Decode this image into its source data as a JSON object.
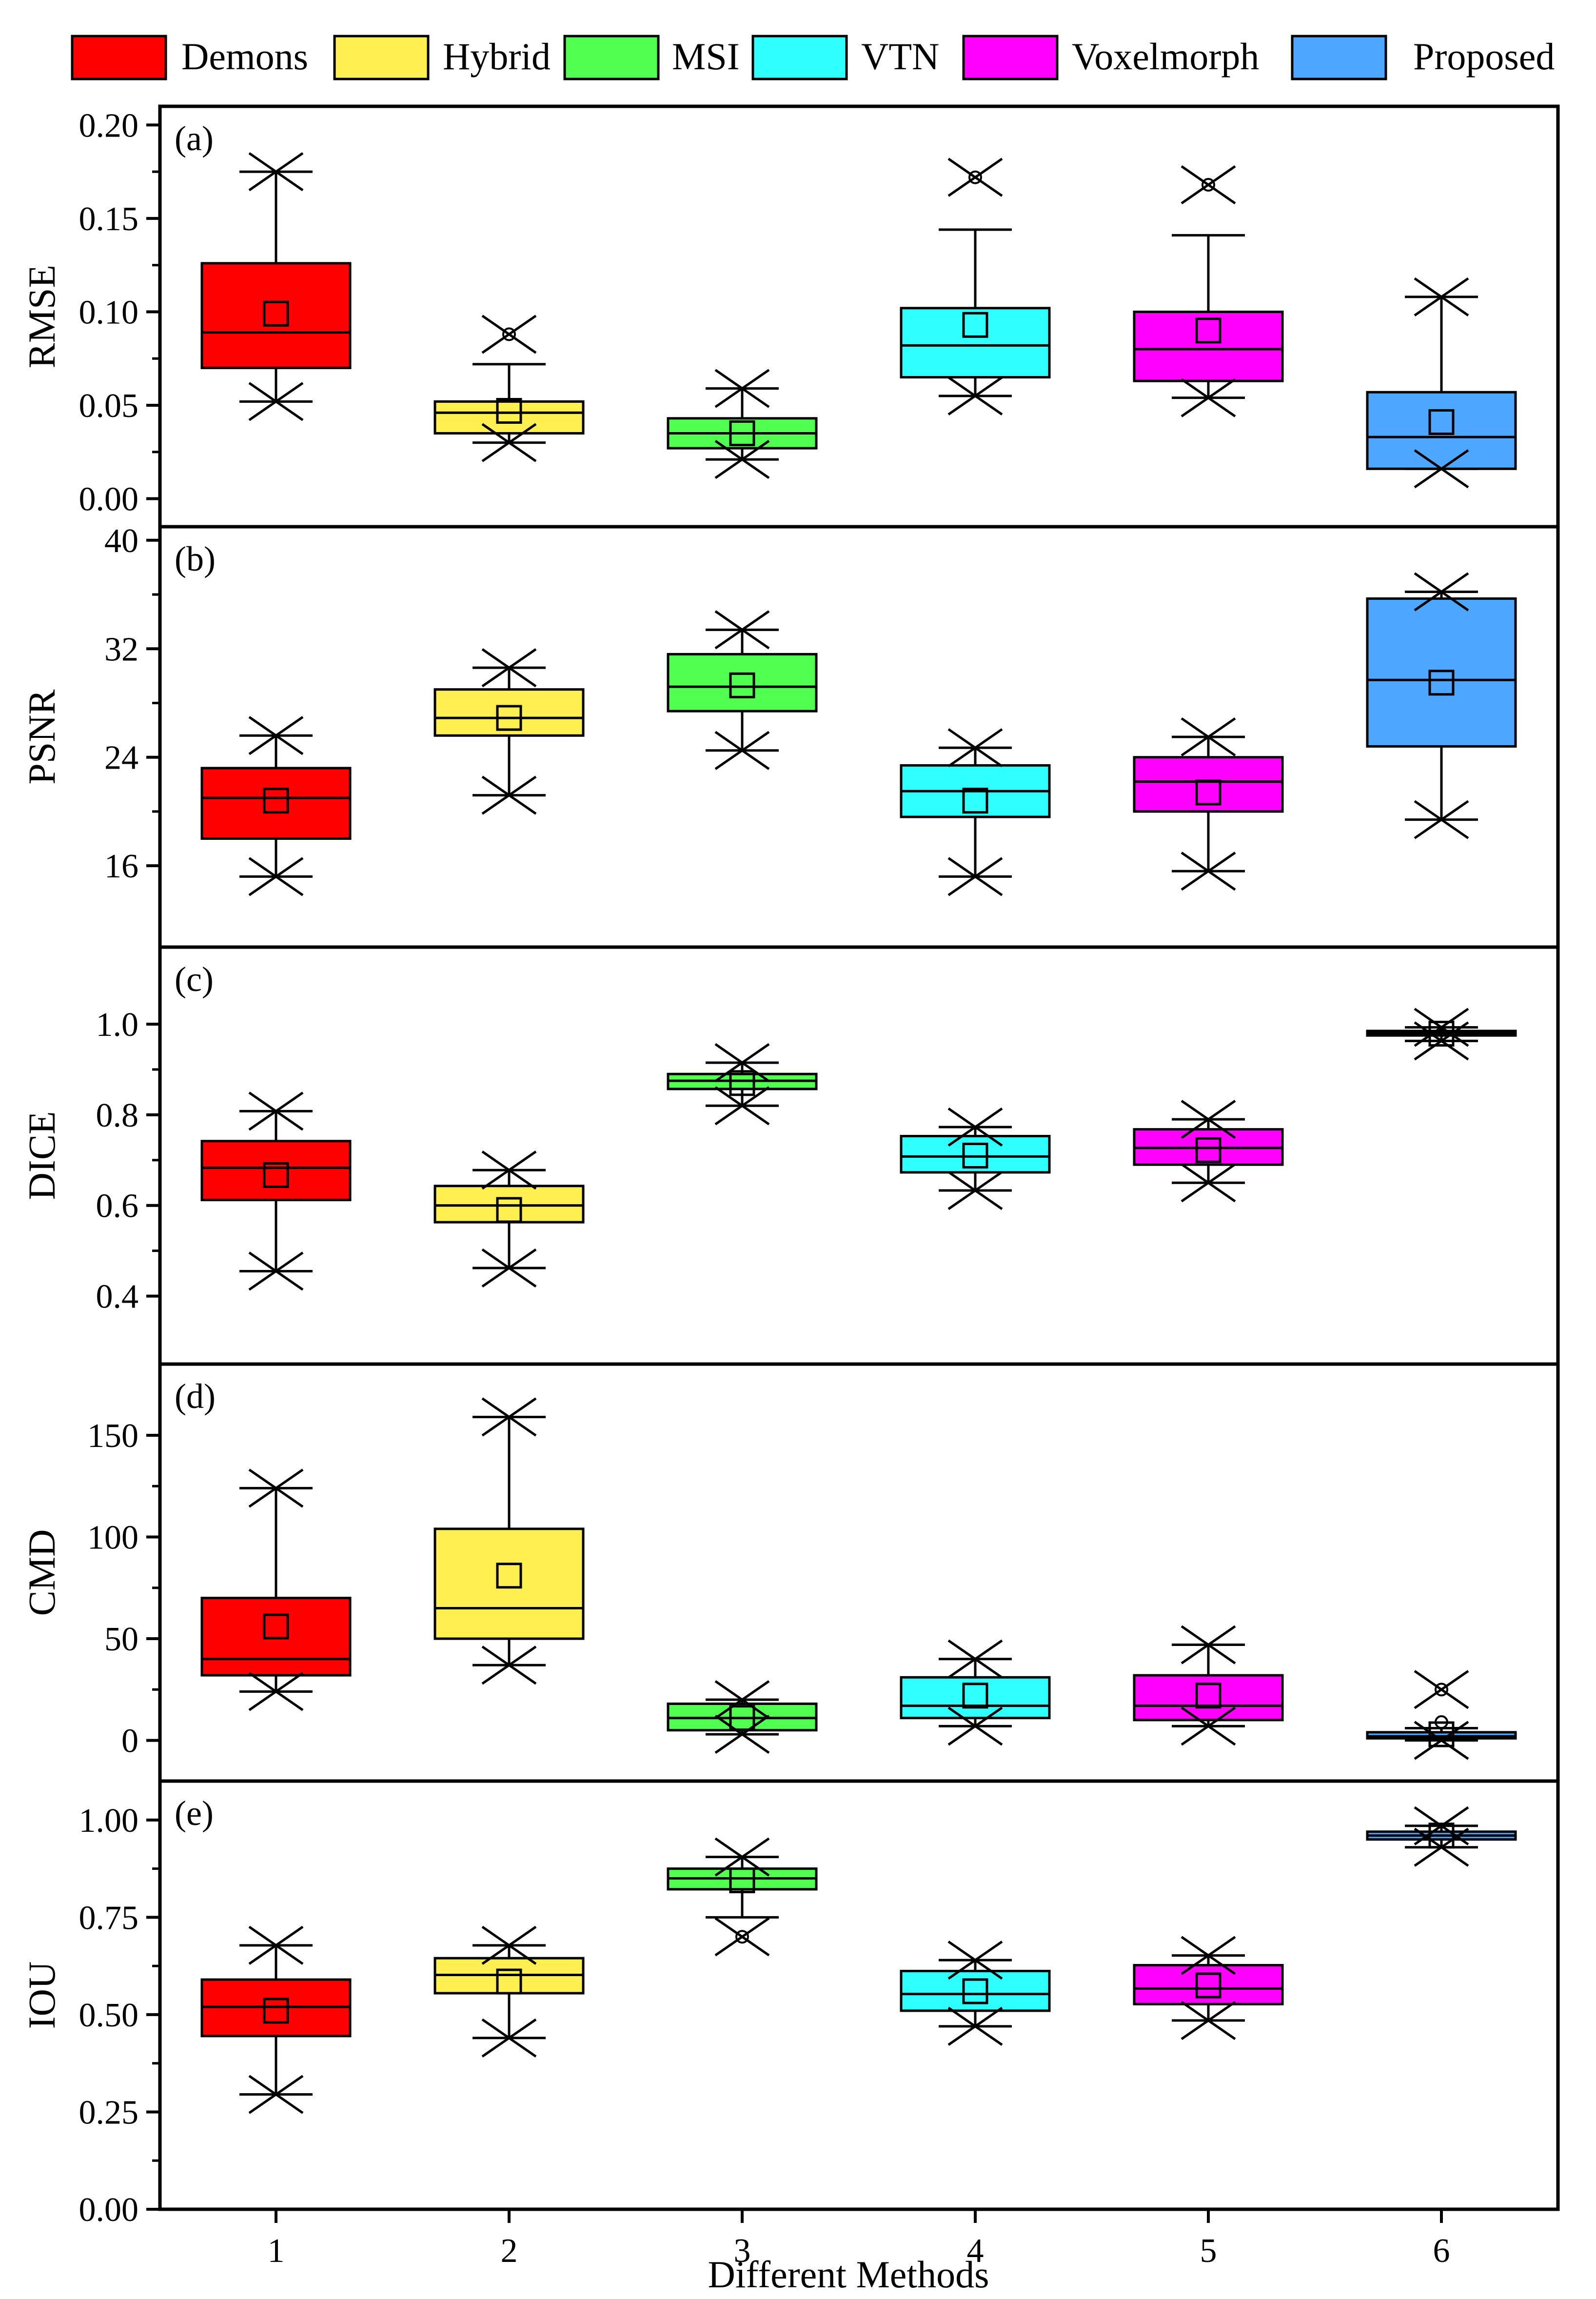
{
  "chart_data": {
    "type": "box",
    "xlabel": "Different Methods",
    "categories": [
      "1",
      "2",
      "3",
      "4",
      "5",
      "6"
    ],
    "legend": {
      "placement": "top",
      "entries": [
        {
          "name": "Demons",
          "color": "#ff0000"
        },
        {
          "name": "Hybrid",
          "color": "#ffef50"
        },
        {
          "name": "MSI",
          "color": "#50ff50"
        },
        {
          "name": "VTN",
          "color": "#30ffff"
        },
        {
          "name": "Voxelmorph",
          "color": "#ff00ff"
        },
        {
          "name": "Proposed",
          "color": "#4da6ff"
        }
      ]
    },
    "panels": [
      {
        "label": "(a)",
        "ylabel": "RMSE",
        "ylim": [
          -0.015,
          0.21
        ],
        "yticks": [
          "0.00",
          "0.05",
          "0.10",
          "0.15",
          "0.20"
        ],
        "ytick_values": [
          0,
          0.05,
          0.1,
          0.15,
          0.2
        ],
        "boxes": [
          {
            "q1": 0.07,
            "median": 0.089,
            "q3": 0.126,
            "whisker_low": 0.052,
            "whisker_high": 0.175,
            "mean": 0.099,
            "min": 0.052,
            "max": 0.175,
            "outliers": []
          },
          {
            "q1": 0.035,
            "median": 0.046,
            "q3": 0.052,
            "whisker_low": 0.03,
            "whisker_high": 0.072,
            "mean": 0.047,
            "min": 0.03,
            "max": 0.088,
            "outliers": [
              0.088
            ]
          },
          {
            "q1": 0.027,
            "median": 0.035,
            "q3": 0.043,
            "whisker_low": 0.021,
            "whisker_high": 0.059,
            "mean": 0.035,
            "min": 0.021,
            "max": 0.059,
            "outliers": []
          },
          {
            "q1": 0.065,
            "median": 0.082,
            "q3": 0.102,
            "whisker_low": 0.055,
            "whisker_high": 0.144,
            "mean": 0.093,
            "min": 0.055,
            "max": 0.172,
            "outliers": [
              0.172
            ]
          },
          {
            "q1": 0.063,
            "median": 0.08,
            "q3": 0.1,
            "whisker_low": 0.054,
            "whisker_high": 0.141,
            "mean": 0.09,
            "min": 0.054,
            "max": 0.168,
            "outliers": [
              0.168
            ]
          },
          {
            "q1": 0.016,
            "median": 0.033,
            "q3": 0.057,
            "whisker_low": 0.016,
            "whisker_high": 0.108,
            "mean": 0.041,
            "min": 0.016,
            "max": 0.108,
            "outliers": []
          }
        ]
      },
      {
        "label": "(b)",
        "ylabel": "PSNR",
        "ylim": [
          10,
          41
        ],
        "yticks": [
          "16",
          "24",
          "32",
          "40"
        ],
        "ytick_values": [
          16,
          24,
          32,
          40
        ],
        "boxes": [
          {
            "q1": 18.0,
            "median": 21.0,
            "q3": 23.2,
            "whisker_low": 15.2,
            "whisker_high": 25.6,
            "mean": 20.8,
            "min": 15.2,
            "max": 25.6,
            "outliers": []
          },
          {
            "q1": 25.6,
            "median": 26.9,
            "q3": 29.0,
            "whisker_low": 21.2,
            "whisker_high": 30.6,
            "mean": 26.9,
            "min": 21.2,
            "max": 30.6,
            "outliers": []
          },
          {
            "q1": 27.4,
            "median": 29.2,
            "q3": 31.6,
            "whisker_low": 24.5,
            "whisker_high": 33.4,
            "mean": 29.3,
            "min": 24.5,
            "max": 33.4,
            "outliers": []
          },
          {
            "q1": 19.6,
            "median": 21.5,
            "q3": 23.4,
            "whisker_low": 15.2,
            "whisker_high": 24.7,
            "mean": 20.8,
            "min": 15.2,
            "max": 24.7,
            "outliers": []
          },
          {
            "q1": 20.0,
            "median": 22.2,
            "q3": 24.0,
            "whisker_low": 15.6,
            "whisker_high": 25.5,
            "mean": 21.4,
            "min": 15.6,
            "max": 25.5,
            "outliers": []
          },
          {
            "q1": 24.8,
            "median": 29.7,
            "q3": 35.7,
            "whisker_low": 19.4,
            "whisker_high": 36.2,
            "mean": 29.5,
            "min": 19.4,
            "max": 36.2,
            "outliers": []
          }
        ]
      },
      {
        "label": "(c)",
        "ylabel": "DICE",
        "ylim": [
          0.25,
          1.17
        ],
        "yticks": [
          "0.4",
          "0.6",
          "0.8",
          "1.0"
        ],
        "ytick_values": [
          0.4,
          0.6,
          0.8,
          1.0
        ],
        "boxes": [
          {
            "q1": 0.612,
            "median": 0.683,
            "q3": 0.742,
            "whisker_low": 0.455,
            "whisker_high": 0.808,
            "mean": 0.667,
            "min": 0.455,
            "max": 0.808,
            "outliers": []
          },
          {
            "q1": 0.563,
            "median": 0.6,
            "q3": 0.643,
            "whisker_low": 0.462,
            "whisker_high": 0.678,
            "mean": 0.59,
            "min": 0.462,
            "max": 0.678,
            "outliers": []
          },
          {
            "q1": 0.857,
            "median": 0.875,
            "q3": 0.89,
            "whisker_low": 0.82,
            "whisker_high": 0.915,
            "mean": 0.87,
            "min": 0.82,
            "max": 0.915,
            "outliers": []
          },
          {
            "q1": 0.673,
            "median": 0.708,
            "q3": 0.753,
            "whisker_low": 0.633,
            "whisker_high": 0.773,
            "mean": 0.71,
            "min": 0.633,
            "max": 0.773,
            "outliers": []
          },
          {
            "q1": 0.69,
            "median": 0.727,
            "q3": 0.768,
            "whisker_low": 0.65,
            "whisker_high": 0.79,
            "mean": 0.722,
            "min": 0.65,
            "max": 0.79,
            "outliers": []
          },
          {
            "q1": 0.975,
            "median": 0.98,
            "q3": 0.985,
            "whisker_low": 0.963,
            "whisker_high": 0.993,
            "mean": 0.979,
            "min": 0.963,
            "max": 0.993,
            "outliers": []
          }
        ]
      },
      {
        "label": "(d)",
        "ylabel": "CMD",
        "ylim": [
          -20,
          185
        ],
        "yticks": [
          "0",
          "50",
          "100",
          "150"
        ],
        "ytick_values": [
          0,
          50,
          100,
          150
        ],
        "boxes": [
          {
            "q1": 32,
            "median": 40,
            "q3": 70,
            "whisker_low": 24,
            "whisker_high": 124,
            "mean": 56,
            "min": 24,
            "max": 124,
            "outliers": []
          },
          {
            "q1": 50,
            "median": 65,
            "q3": 104,
            "whisker_low": 37,
            "whisker_high": 159,
            "mean": 81,
            "min": 37,
            "max": 159,
            "outliers": []
          },
          {
            "q1": 5,
            "median": 11,
            "q3": 18,
            "whisker_low": 3,
            "whisker_high": 20,
            "mean": 11,
            "min": 3,
            "max": 20,
            "outliers": []
          },
          {
            "q1": 11,
            "median": 17,
            "q3": 31,
            "whisker_low": 7,
            "whisker_high": 40,
            "mean": 22,
            "min": 7,
            "max": 40,
            "outliers": []
          },
          {
            "q1": 10,
            "median": 17,
            "q3": 32,
            "whisker_low": 7,
            "whisker_high": 47,
            "mean": 22,
            "min": 7,
            "max": 47,
            "outliers": []
          },
          {
            "q1": 1,
            "median": 2,
            "q3": 4,
            "whisker_low": 0,
            "whisker_high": 6,
            "mean": 3,
            "min": 0,
            "max": 25,
            "outliers": [
              9,
              25
            ]
          }
        ]
      },
      {
        "label": "(e)",
        "ylabel": "IOU",
        "ylim": [
          0,
          1.1
        ],
        "yticks": [
          "0.00",
          "0.25",
          "0.50",
          "0.75",
          "1.00"
        ],
        "ytick_values": [
          0,
          0.25,
          0.5,
          0.75,
          1.0
        ],
        "boxes": [
          {
            "q1": 0.445,
            "median": 0.52,
            "q3": 0.59,
            "whisker_low": 0.295,
            "whisker_high": 0.678,
            "mean": 0.51,
            "min": 0.295,
            "max": 0.678,
            "outliers": []
          },
          {
            "q1": 0.555,
            "median": 0.602,
            "q3": 0.645,
            "whisker_low": 0.44,
            "whisker_high": 0.678,
            "mean": 0.585,
            "min": 0.44,
            "max": 0.678,
            "outliers": []
          },
          {
            "q1": 0.822,
            "median": 0.85,
            "q3": 0.875,
            "whisker_low": 0.75,
            "whisker_high": 0.905,
            "mean": 0.845,
            "min": 0.7,
            "max": 0.905,
            "outliers": [
              0.7
            ]
          },
          {
            "q1": 0.51,
            "median": 0.553,
            "q3": 0.612,
            "whisker_low": 0.47,
            "whisker_high": 0.64,
            "mean": 0.56,
            "min": 0.47,
            "max": 0.64,
            "outliers": []
          },
          {
            "q1": 0.527,
            "median": 0.567,
            "q3": 0.627,
            "whisker_low": 0.485,
            "whisker_high": 0.652,
            "mean": 0.575,
            "min": 0.485,
            "max": 0.652,
            "outliers": []
          },
          {
            "q1": 0.95,
            "median": 0.96,
            "q3": 0.97,
            "whisker_low": 0.93,
            "whisker_high": 0.985,
            "mean": 0.96,
            "min": 0.93,
            "max": 0.985,
            "outliers": []
          }
        ]
      }
    ]
  }
}
